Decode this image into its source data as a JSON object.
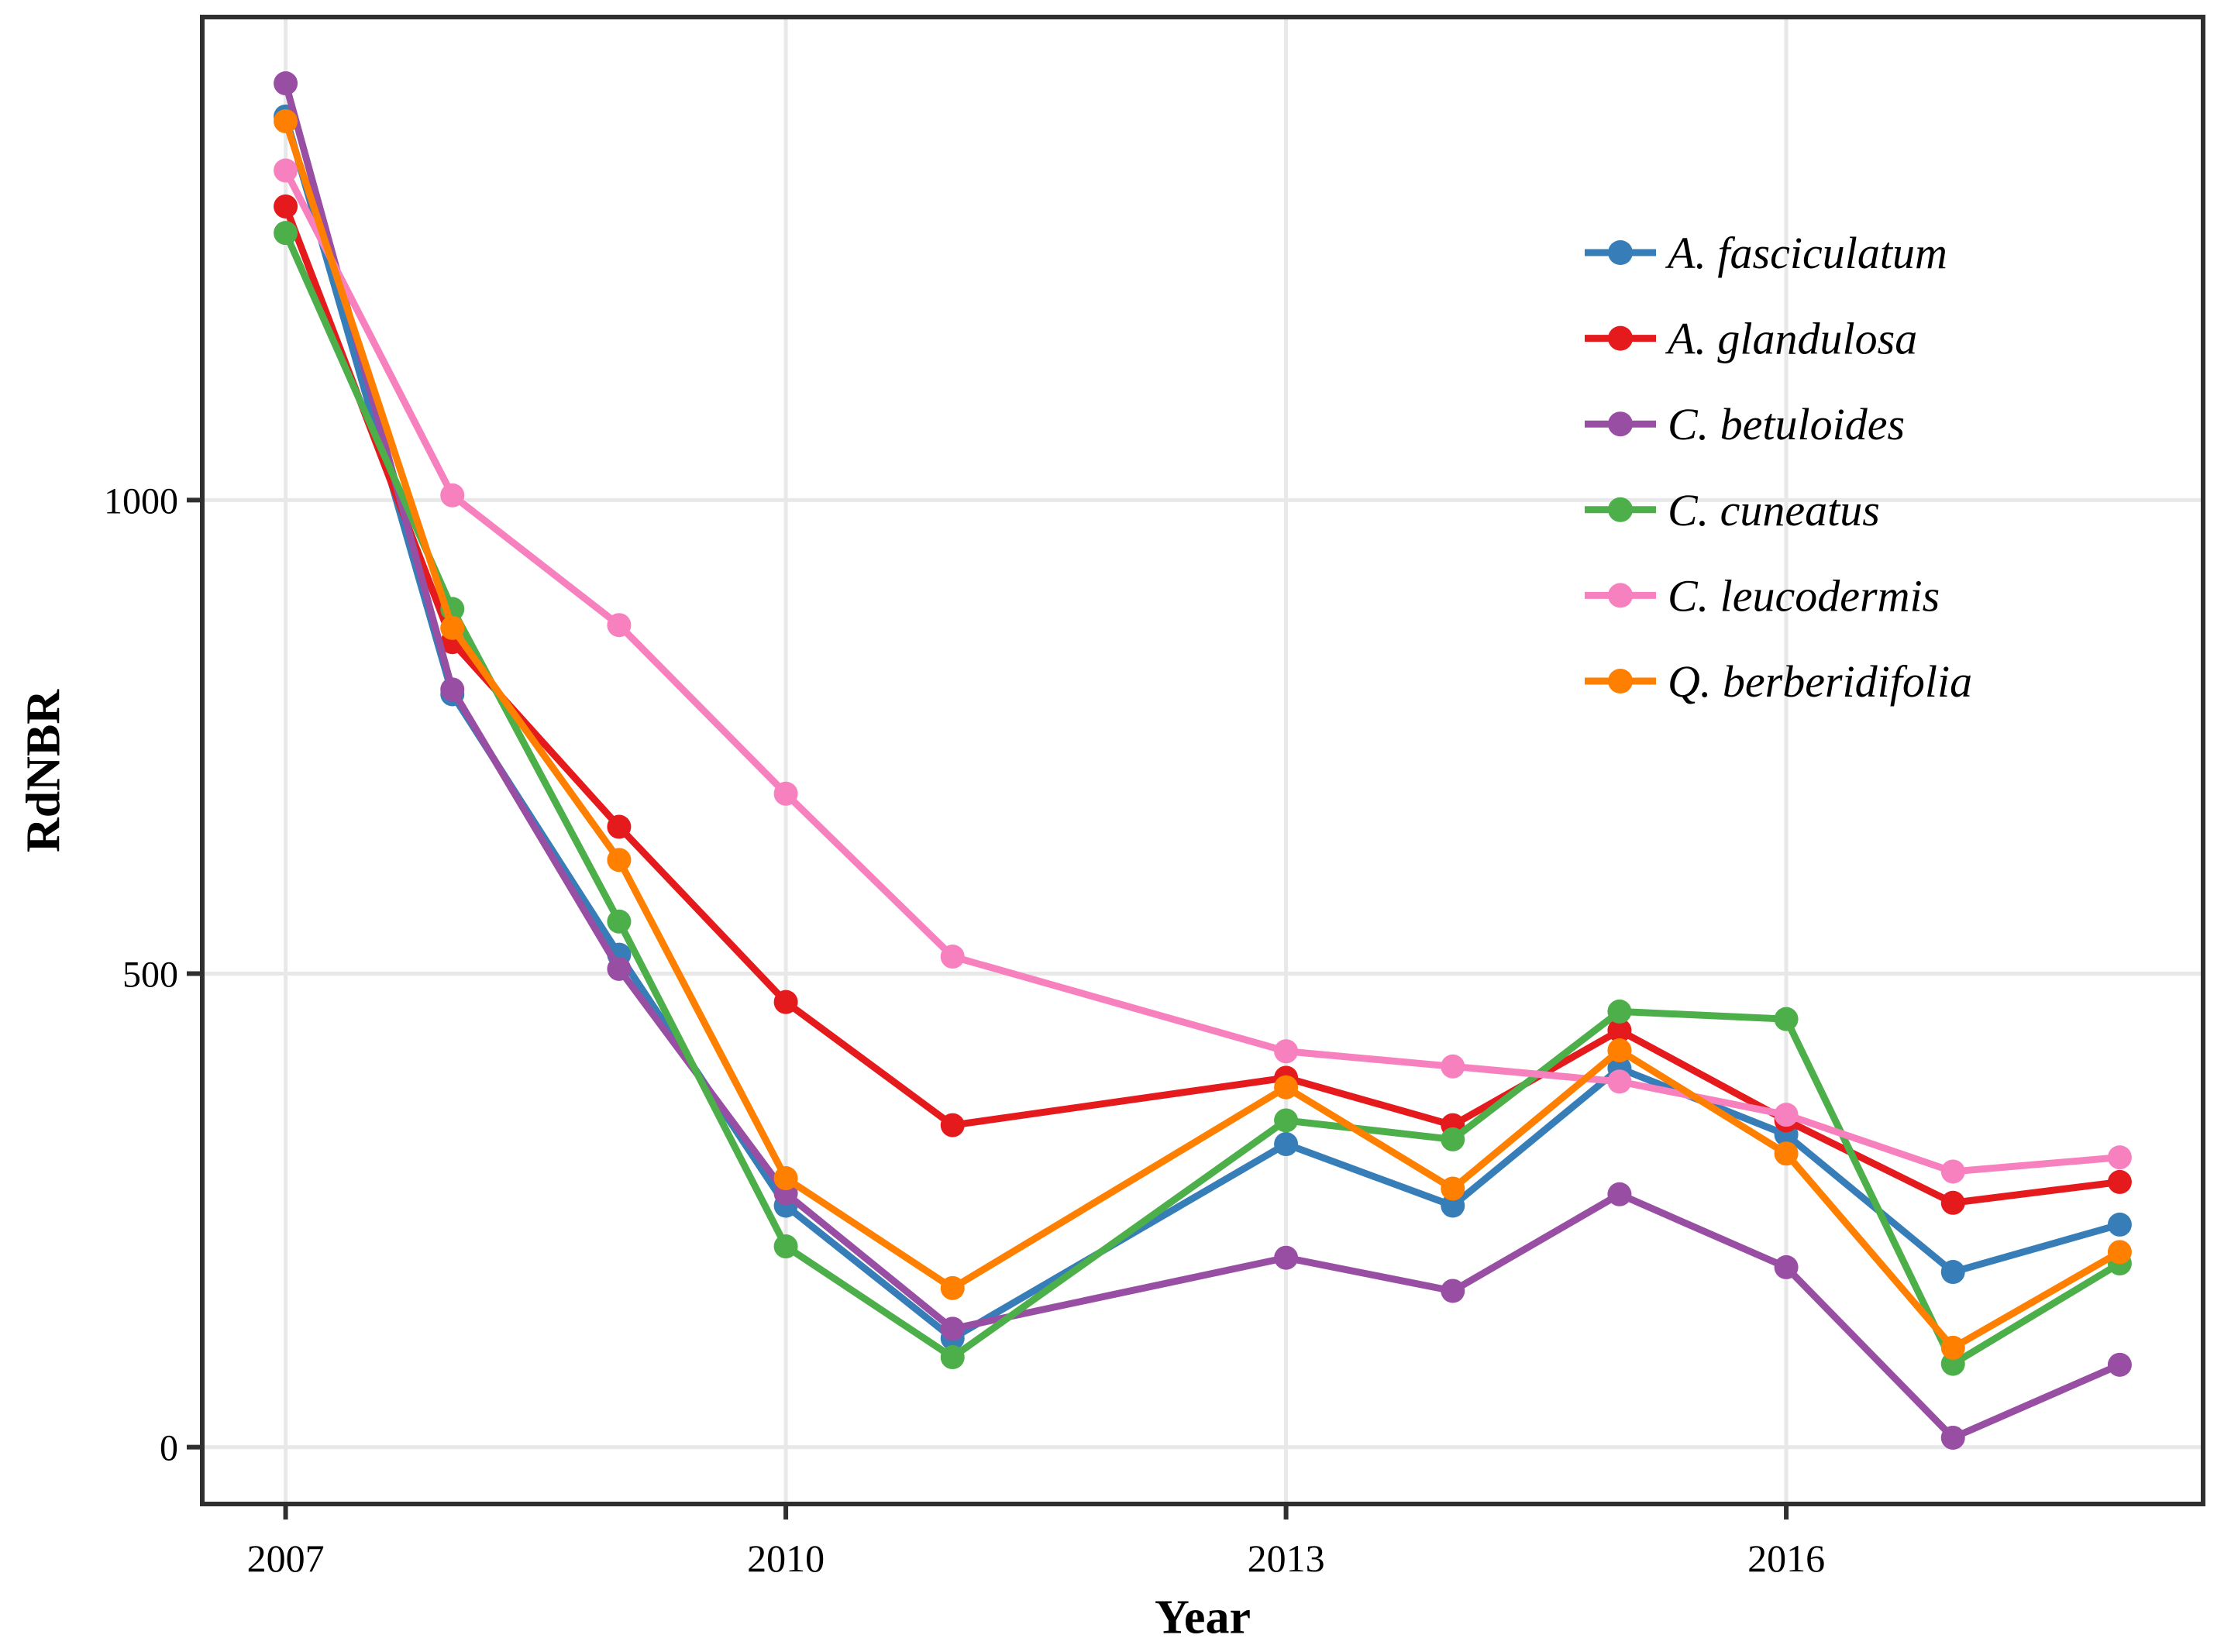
{
  "figure": {
    "background": "#ffffff",
    "panel_border_color": "#2f2f2f",
    "gridline_color": "#e8e8e8",
    "tick_color": "#2f2f2f",
    "text_color": "#000000"
  },
  "chart_data": {
    "type": "line",
    "title": "",
    "xlabel": "Year",
    "ylabel": "RdNBR",
    "grid": "major-only",
    "legend_position": "inside-top-right",
    "xlim": [
      2006.5,
      2018.5
    ],
    "ylim": [
      -60,
      1510
    ],
    "xticks": [
      {
        "value": 2007,
        "label": "2007"
      },
      {
        "value": 2010,
        "label": "2010"
      },
      {
        "value": 2013,
        "label": "2013"
      },
      {
        "value": 2016,
        "label": "2016"
      }
    ],
    "yticks": [
      {
        "value": 0,
        "label": "0"
      },
      {
        "value": 500,
        "label": "500"
      },
      {
        "value": 1000,
        "label": "1000"
      }
    ],
    "x": [
      2007,
      2008,
      2009,
      2010,
      2011,
      2013,
      2014,
      2015,
      2016,
      2017,
      2018
    ],
    "note_missing_year": 2012,
    "series": [
      {
        "name": "A. fasciculatum",
        "color": "#377EB8",
        "values": [
          1405,
          795,
          520,
          255,
          115,
          320,
          255,
          400,
          330,
          185,
          235
        ]
      },
      {
        "name": "A. glandulosa",
        "color": "#E41A1C",
        "values": [
          1310,
          850,
          655,
          470,
          340,
          390,
          340,
          440,
          345,
          258,
          280
        ]
      },
      {
        "name": "C. betuloides",
        "color": "#984EA3",
        "values": [
          1440,
          800,
          505,
          268,
          125,
          200,
          165,
          267,
          190,
          10,
          87
        ]
      },
      {
        "name": "C. cuneatus",
        "color": "#4DAF4A",
        "values": [
          1282,
          885,
          555,
          212,
          95,
          345,
          325,
          460,
          452,
          88,
          194
        ]
      },
      {
        "name": "C. leucodermis",
        "color": "#F781BF",
        "values": [
          1348,
          1005,
          868,
          690,
          518,
          418,
          402,
          386,
          351,
          291,
          306
        ]
      },
      {
        "name": "Q. berberidifolia",
        "color": "#FF7F00",
        "values": [
          1400,
          865,
          620,
          284,
          168,
          380,
          273,
          419,
          310,
          105,
          206
        ]
      }
    ]
  }
}
